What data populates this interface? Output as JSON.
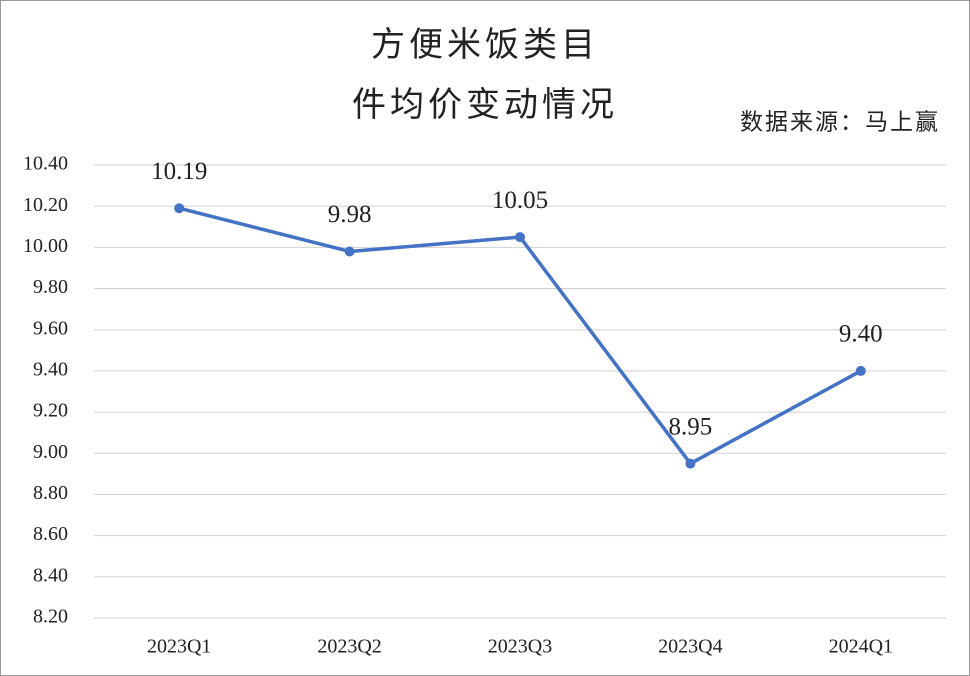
{
  "chart_data": {
    "type": "line",
    "title": [
      "方便米饭类目",
      "件均价变动情况"
    ],
    "source": "数据来源：马上赢",
    "categories": [
      "2023Q1",
      "2023Q2",
      "2023Q3",
      "2023Q4",
      "2024Q1"
    ],
    "values": [
      10.19,
      9.98,
      10.05,
      8.95,
      9.4
    ],
    "value_labels": [
      "10.19",
      "9.98",
      "10.05",
      "8.95",
      "9.40"
    ],
    "color": "#4472c4",
    "ylim": [
      8.2,
      10.4
    ],
    "yticks": [
      {
        "value": 8.2,
        "label": "8.20"
      },
      {
        "value": 8.4,
        "label": "8.40"
      },
      {
        "value": 8.6,
        "label": "8.60"
      },
      {
        "value": 8.8,
        "label": "8.80"
      },
      {
        "value": 9.0,
        "label": "9.00"
      },
      {
        "value": 9.2,
        "label": "9.20"
      },
      {
        "value": 9.4,
        "label": "9.40"
      },
      {
        "value": 9.6,
        "label": "9.60"
      },
      {
        "value": 9.8,
        "label": "9.80"
      },
      {
        "value": 10.0,
        "label": "10.00"
      },
      {
        "value": 10.2,
        "label": "10.20"
      },
      {
        "value": 10.4,
        "label": "10.40"
      }
    ],
    "grid": true
  }
}
